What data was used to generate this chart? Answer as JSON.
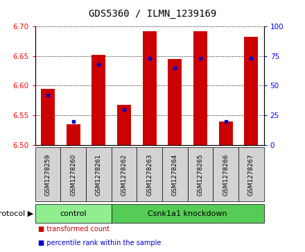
{
  "title": "GDS5360 / ILMN_1239169",
  "samples": [
    "GSM1278259",
    "GSM1278260",
    "GSM1278261",
    "GSM1278262",
    "GSM1278263",
    "GSM1278264",
    "GSM1278265",
    "GSM1278266",
    "GSM1278267"
  ],
  "transformed_count": [
    6.595,
    6.535,
    6.652,
    6.568,
    6.692,
    6.645,
    6.692,
    6.54,
    6.683
  ],
  "percentile_rank": [
    42,
    20,
    68,
    30,
    73,
    65,
    73,
    20,
    73
  ],
  "ylim_left": [
    6.5,
    6.7
  ],
  "ylim_right": [
    0,
    100
  ],
  "yticks_left": [
    6.5,
    6.55,
    6.6,
    6.65,
    6.7
  ],
  "yticks_right": [
    0,
    25,
    50,
    75,
    100
  ],
  "bar_color": "#cc0000",
  "dot_color": "#0000cc",
  "bar_bottom": 6.5,
  "protocol_groups": [
    {
      "label": "control",
      "start": 0,
      "end": 3,
      "color": "#90ee90"
    },
    {
      "label": "Csnk1a1 knockdown",
      "start": 3,
      "end": 9,
      "color": "#55cc55"
    }
  ],
  "legend_items": [
    {
      "label": "transformed count",
      "color": "#cc0000"
    },
    {
      "label": "percentile rank within the sample",
      "color": "#0000cc"
    }
  ],
  "grid_color": "black",
  "sample_area_color": "#d3d3d3",
  "title_fontsize": 10,
  "tick_fontsize": 7.5,
  "sample_fontsize": 6.5,
  "proto_fontsize": 8,
  "legend_fontsize": 7
}
